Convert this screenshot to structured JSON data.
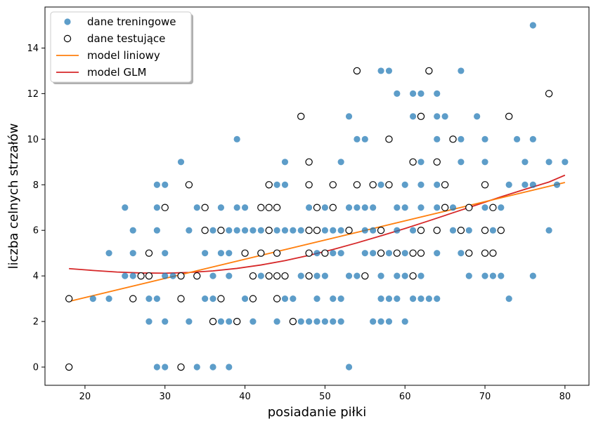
{
  "chart_data": {
    "type": "scatter",
    "xlabel": "posiadanie piłki",
    "ylabel": "liczba celnych strzałów",
    "xlim": [
      15,
      83
    ],
    "ylim": [
      -0.8,
      15.8
    ],
    "xticks": [
      20,
      30,
      40,
      50,
      60,
      70,
      80
    ],
    "yticks": [
      0,
      2,
      4,
      6,
      8,
      10,
      12,
      14
    ],
    "grid": false,
    "legend_position": "top-left",
    "colors": {
      "train": "#1f77b4",
      "linear": "#ff7f0e",
      "glm": "#d62728",
      "test_edge": "#000000"
    },
    "series": [
      {
        "name": "dane treningowe",
        "kind": "scatter",
        "style": "filled",
        "points": [
          [
            76,
            15
          ],
          [
            57,
            13
          ],
          [
            58,
            13
          ],
          [
            67,
            13
          ],
          [
            59,
            12
          ],
          [
            61,
            12
          ],
          [
            62,
            12
          ],
          [
            64,
            12
          ],
          [
            53,
            11
          ],
          [
            61,
            11
          ],
          [
            64,
            11
          ],
          [
            65,
            11
          ],
          [
            69,
            11
          ],
          [
            73,
            11
          ],
          [
            39,
            10
          ],
          [
            54,
            10
          ],
          [
            55,
            10
          ],
          [
            58,
            10
          ],
          [
            64,
            10
          ],
          [
            67,
            10
          ],
          [
            70,
            10
          ],
          [
            74,
            10
          ],
          [
            76,
            10
          ],
          [
            32,
            9
          ],
          [
            45,
            9
          ],
          [
            52,
            9
          ],
          [
            62,
            9
          ],
          [
            64,
            9
          ],
          [
            67,
            9
          ],
          [
            70,
            9
          ],
          [
            75,
            9
          ],
          [
            78,
            9
          ],
          [
            80,
            9
          ],
          [
            29,
            8
          ],
          [
            30,
            8
          ],
          [
            44,
            8
          ],
          [
            45,
            8
          ],
          [
            48,
            8
          ],
          [
            51,
            8
          ],
          [
            54,
            8
          ],
          [
            57,
            8
          ],
          [
            60,
            8
          ],
          [
            62,
            8
          ],
          [
            64,
            8
          ],
          [
            70,
            8
          ],
          [
            73,
            8
          ],
          [
            75,
            8
          ],
          [
            76,
            8
          ],
          [
            79,
            8
          ],
          [
            25,
            7
          ],
          [
            29,
            7
          ],
          [
            34,
            7
          ],
          [
            37,
            7
          ],
          [
            39,
            7
          ],
          [
            40,
            7
          ],
          [
            43,
            7
          ],
          [
            48,
            7
          ],
          [
            50,
            7
          ],
          [
            53,
            7
          ],
          [
            54,
            7
          ],
          [
            55,
            7
          ],
          [
            56,
            7
          ],
          [
            59,
            7
          ],
          [
            60,
            7
          ],
          [
            62,
            7
          ],
          [
            64,
            7
          ],
          [
            66,
            7
          ],
          [
            68,
            7
          ],
          [
            70,
            7
          ],
          [
            72,
            7
          ],
          [
            26,
            6
          ],
          [
            29,
            6
          ],
          [
            33,
            6
          ],
          [
            35,
            6
          ],
          [
            36,
            6
          ],
          [
            37,
            6
          ],
          [
            38,
            6
          ],
          [
            39,
            6
          ],
          [
            40,
            6
          ],
          [
            41,
            6
          ],
          [
            42,
            6
          ],
          [
            44,
            6
          ],
          [
            45,
            6
          ],
          [
            46,
            6
          ],
          [
            47,
            6
          ],
          [
            49,
            6
          ],
          [
            50,
            6
          ],
          [
            51,
            6
          ],
          [
            52,
            6
          ],
          [
            53,
            6
          ],
          [
            55,
            6
          ],
          [
            56,
            6
          ],
          [
            57,
            6
          ],
          [
            59,
            6
          ],
          [
            61,
            6
          ],
          [
            62,
            6
          ],
          [
            64,
            6
          ],
          [
            66,
            6
          ],
          [
            68,
            6
          ],
          [
            71,
            6
          ],
          [
            72,
            6
          ],
          [
            78,
            6
          ],
          [
            23,
            5
          ],
          [
            26,
            5
          ],
          [
            30,
            5
          ],
          [
            35,
            5
          ],
          [
            37,
            5
          ],
          [
            38,
            5
          ],
          [
            42,
            5
          ],
          [
            44,
            5
          ],
          [
            48,
            5
          ],
          [
            49,
            5
          ],
          [
            51,
            5
          ],
          [
            52,
            5
          ],
          [
            55,
            5
          ],
          [
            56,
            5
          ],
          [
            57,
            5
          ],
          [
            58,
            5
          ],
          [
            59,
            5
          ],
          [
            60,
            5
          ],
          [
            61,
            5
          ],
          [
            62,
            5
          ],
          [
            64,
            5
          ],
          [
            67,
            5
          ],
          [
            68,
            5
          ],
          [
            70,
            5
          ],
          [
            25,
            4
          ],
          [
            26,
            4
          ],
          [
            28,
            4
          ],
          [
            30,
            4
          ],
          [
            31,
            4
          ],
          [
            32,
            4
          ],
          [
            34,
            4
          ],
          [
            36,
            4
          ],
          [
            38,
            4
          ],
          [
            41,
            4
          ],
          [
            42,
            4
          ],
          [
            44,
            4
          ],
          [
            47,
            4
          ],
          [
            48,
            4
          ],
          [
            49,
            4
          ],
          [
            50,
            4
          ],
          [
            53,
            4
          ],
          [
            54,
            4
          ],
          [
            57,
            4
          ],
          [
            59,
            4
          ],
          [
            60,
            4
          ],
          [
            62,
            4
          ],
          [
            68,
            4
          ],
          [
            70,
            4
          ],
          [
            71,
            4
          ],
          [
            72,
            4
          ],
          [
            76,
            4
          ],
          [
            21,
            3
          ],
          [
            23,
            3
          ],
          [
            28,
            3
          ],
          [
            29,
            3
          ],
          [
            32,
            3
          ],
          [
            35,
            3
          ],
          [
            36,
            3
          ],
          [
            40,
            3
          ],
          [
            41,
            3
          ],
          [
            44,
            3
          ],
          [
            45,
            3
          ],
          [
            46,
            3
          ],
          [
            49,
            3
          ],
          [
            51,
            3
          ],
          [
            52,
            3
          ],
          [
            57,
            3
          ],
          [
            58,
            3
          ],
          [
            59,
            3
          ],
          [
            61,
            3
          ],
          [
            62,
            3
          ],
          [
            63,
            3
          ],
          [
            64,
            3
          ],
          [
            73,
            3
          ],
          [
            28,
            2
          ],
          [
            30,
            2
          ],
          [
            33,
            2
          ],
          [
            36,
            2
          ],
          [
            37,
            2
          ],
          [
            38,
            2
          ],
          [
            41,
            2
          ],
          [
            44,
            2
          ],
          [
            47,
            2
          ],
          [
            48,
            2
          ],
          [
            49,
            2
          ],
          [
            50,
            2
          ],
          [
            51,
            2
          ],
          [
            52,
            2
          ],
          [
            56,
            2
          ],
          [
            57,
            2
          ],
          [
            58,
            2
          ],
          [
            60,
            2
          ],
          [
            29,
            0
          ],
          [
            30,
            0
          ],
          [
            34,
            0
          ],
          [
            36,
            0
          ],
          [
            38,
            0
          ],
          [
            53,
            0
          ]
        ]
      },
      {
        "name": "dane testujące",
        "kind": "scatter",
        "style": "hollow",
        "points": [
          [
            54,
            13
          ],
          [
            63,
            13
          ],
          [
            78,
            12
          ],
          [
            47,
            11
          ],
          [
            62,
            11
          ],
          [
            73,
            11
          ],
          [
            58,
            10
          ],
          [
            66,
            10
          ],
          [
            48,
            9
          ],
          [
            61,
            9
          ],
          [
            64,
            9
          ],
          [
            33,
            8
          ],
          [
            43,
            8
          ],
          [
            48,
            8
          ],
          [
            51,
            8
          ],
          [
            54,
            8
          ],
          [
            56,
            8
          ],
          [
            58,
            8
          ],
          [
            65,
            8
          ],
          [
            70,
            8
          ],
          [
            30,
            7
          ],
          [
            35,
            7
          ],
          [
            42,
            7
          ],
          [
            43,
            7
          ],
          [
            44,
            7
          ],
          [
            49,
            7
          ],
          [
            51,
            7
          ],
          [
            65,
            7
          ],
          [
            68,
            7
          ],
          [
            71,
            7
          ],
          [
            35,
            6
          ],
          [
            37,
            6
          ],
          [
            43,
            6
          ],
          [
            48,
            6
          ],
          [
            49,
            6
          ],
          [
            53,
            6
          ],
          [
            57,
            6
          ],
          [
            62,
            6
          ],
          [
            64,
            6
          ],
          [
            67,
            6
          ],
          [
            70,
            6
          ],
          [
            72,
            6
          ],
          [
            28,
            5
          ],
          [
            40,
            5
          ],
          [
            42,
            5
          ],
          [
            44,
            5
          ],
          [
            48,
            5
          ],
          [
            50,
            5
          ],
          [
            57,
            5
          ],
          [
            59,
            5
          ],
          [
            61,
            5
          ],
          [
            62,
            5
          ],
          [
            68,
            5
          ],
          [
            70,
            5
          ],
          [
            71,
            5
          ],
          [
            27,
            4
          ],
          [
            28,
            4
          ],
          [
            32,
            4
          ],
          [
            34,
            4
          ],
          [
            41,
            4
          ],
          [
            43,
            4
          ],
          [
            44,
            4
          ],
          [
            45,
            4
          ],
          [
            48,
            4
          ],
          [
            55,
            4
          ],
          [
            61,
            4
          ],
          [
            18,
            3
          ],
          [
            26,
            3
          ],
          [
            32,
            3
          ],
          [
            37,
            3
          ],
          [
            41,
            3
          ],
          [
            44,
            3
          ],
          [
            36,
            2
          ],
          [
            39,
            2
          ],
          [
            46,
            2
          ],
          [
            18,
            0
          ],
          [
            32,
            0
          ]
        ]
      },
      {
        "name": "model liniowy",
        "kind": "line",
        "points": [
          [
            18,
            2.88
          ],
          [
            80,
            8.1
          ]
        ]
      },
      {
        "name": "model GLM",
        "kind": "line",
        "points": [
          [
            18,
            4.32
          ],
          [
            21,
            4.24
          ],
          [
            24,
            4.17
          ],
          [
            27,
            4.13
          ],
          [
            30,
            4.12
          ],
          [
            33,
            4.15
          ],
          [
            36,
            4.22
          ],
          [
            39,
            4.33
          ],
          [
            42,
            4.48
          ],
          [
            45,
            4.67
          ],
          [
            48,
            4.9
          ],
          [
            51,
            5.16
          ],
          [
            54,
            5.45
          ],
          [
            57,
            5.76
          ],
          [
            60,
            6.08
          ],
          [
            63,
            6.42
          ],
          [
            66,
            6.77
          ],
          [
            69,
            7.12
          ],
          [
            72,
            7.47
          ],
          [
            75,
            7.8
          ],
          [
            78,
            8.12
          ],
          [
            80,
            8.42
          ]
        ]
      }
    ]
  }
}
